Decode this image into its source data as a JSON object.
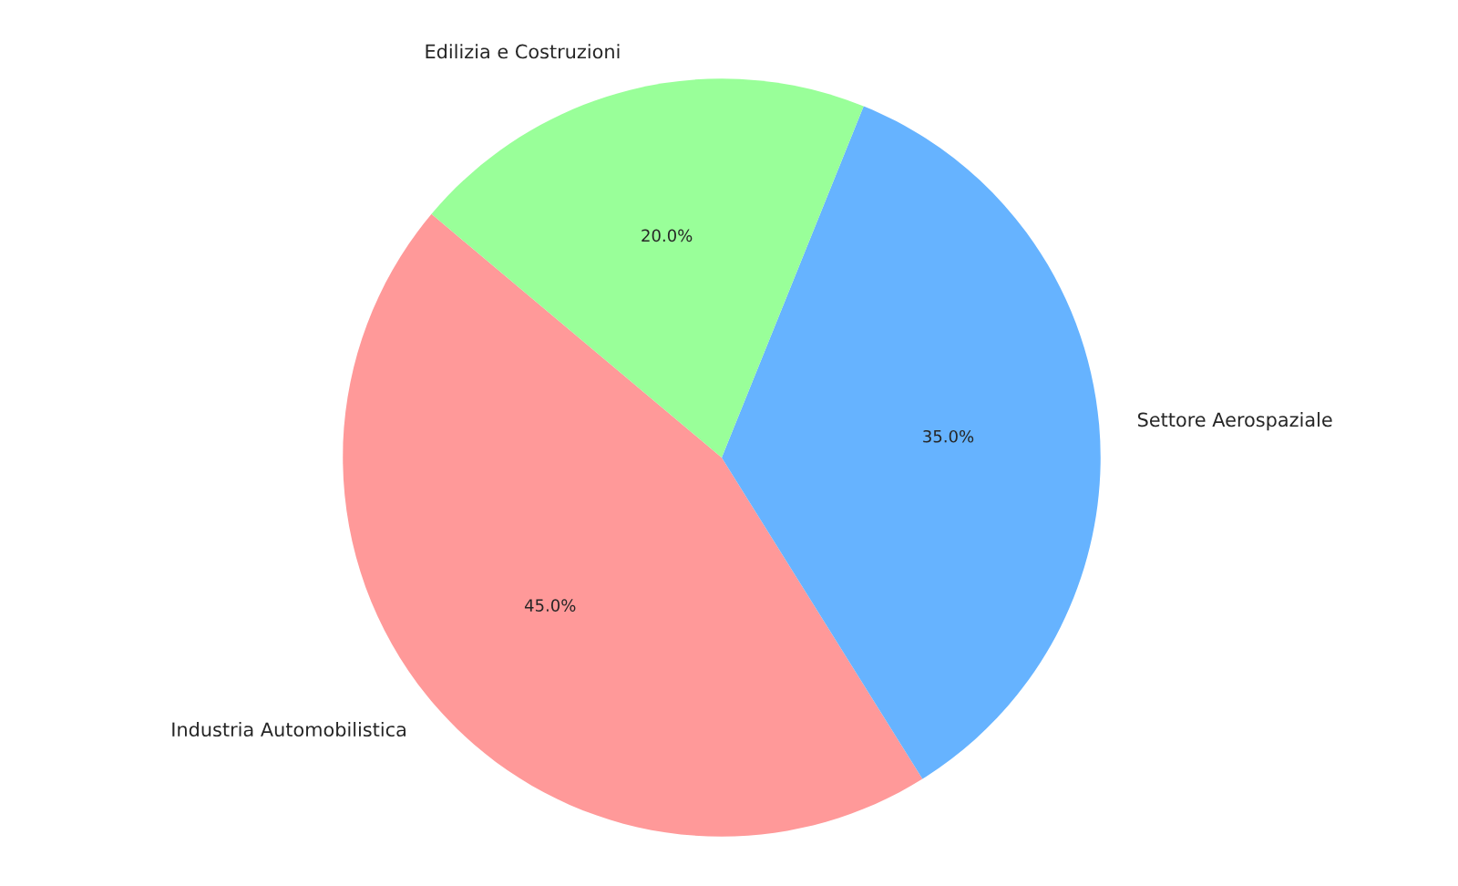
{
  "chart_data": {
    "type": "pie",
    "categories": [
      "Industria Automobilistica",
      "Settore Aerospaziale",
      "Edilizia e Costruzioni"
    ],
    "values": [
      45,
      35,
      20
    ],
    "value_labels": [
      "45.0%",
      "35.0%",
      "20.0%"
    ],
    "colors": [
      "#ff9999",
      "#66b3ff",
      "#99ff99"
    ],
    "legend": false
  }
}
